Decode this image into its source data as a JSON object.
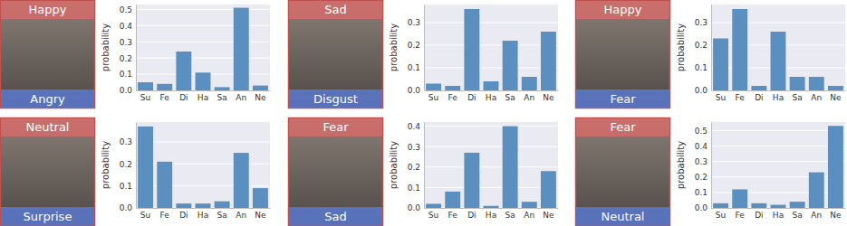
{
  "chart_data": [
    {
      "type": "bar",
      "categories": [
        "Su",
        "Fe",
        "Di",
        "Ha",
        "Sa",
        "An",
        "Ne"
      ],
      "values": [
        0.05,
        0.04,
        0.24,
        0.11,
        0.02,
        0.51,
        0.03
      ],
      "color": "#5b8fbf",
      "ylim": [
        0,
        0.53
      ],
      "yticks": [
        {
          "value": 0,
          "label": "0.0"
        },
        0.1,
        0.2,
        0.3,
        0.4,
        0.5
      ],
      "y_label": "probability",
      "grid": true
    },
    {
      "type": "bar",
      "categories": [
        "Su",
        "Fe",
        "Di",
        "Ha",
        "Sa",
        "An",
        "Ne"
      ],
      "values": [
        0.03,
        0.02,
        0.36,
        0.04,
        0.22,
        0.06,
        0.26
      ],
      "color": "#5b8fbf",
      "ylim": [
        0,
        0.38
      ],
      "yticks": [
        {
          "value": 0,
          "label": "0.0"
        },
        0.1,
        0.2,
        0.3
      ],
      "y_label": "probability",
      "grid": true
    },
    {
      "type": "bar",
      "categories": [
        "Su",
        "Fe",
        "Di",
        "Ha",
        "Sa",
        "An",
        "Ne"
      ],
      "values": [
        0.23,
        0.36,
        0.02,
        0.26,
        0.06,
        0.06,
        0.02
      ],
      "color": "#5b8fbf",
      "ylim": [
        0,
        0.38
      ],
      "yticks": [
        {
          "value": 0,
          "label": "0.0"
        },
        0.1,
        0.2,
        0.3
      ],
      "y_label": "probability",
      "grid": true
    },
    {
      "type": "bar",
      "categories": [
        "Su",
        "Fe",
        "Di",
        "Ha",
        "Sa",
        "An",
        "Ne"
      ],
      "values": [
        0.37,
        0.21,
        0.02,
        0.02,
        0.03,
        0.25,
        0.09
      ],
      "color": "#5b8fbf",
      "ylim": [
        0,
        0.39
      ],
      "yticks": [
        {
          "value": 0,
          "label": "0.0"
        },
        0.1,
        0.2,
        0.3
      ],
      "y_label": "probability",
      "grid": true
    },
    {
      "type": "bar",
      "categories": [
        "Su",
        "Fe",
        "Di",
        "Ha",
        "Sa",
        "An",
        "Ne"
      ],
      "values": [
        0.02,
        0.08,
        0.27,
        0.01,
        0.4,
        0.03,
        0.18
      ],
      "color": "#5b8fbf",
      "ylim": [
        0,
        0.42
      ],
      "yticks": [
        {
          "value": 0,
          "label": "0.0"
        },
        0.1,
        0.2,
        0.3,
        0.4
      ],
      "y_label": "probability",
      "grid": true
    },
    {
      "type": "bar",
      "categories": [
        "Su",
        "Fe",
        "Di",
        "Ha",
        "Sa",
        "An",
        "Ne"
      ],
      "values": [
        0.03,
        0.12,
        0.03,
        0.02,
        0.04,
        0.23,
        0.53
      ],
      "color": "#5b8fbf",
      "ylim": [
        0,
        0.555
      ],
      "yticks": [
        {
          "value": 0,
          "label": "0.0"
        },
        0.1,
        0.2,
        0.3,
        0.4,
        0.5
      ],
      "y_label": "probability",
      "grid": true
    }
  ],
  "panels": [
    {
      "top_label": "Happy",
      "bottom_label": "Angry"
    },
    {
      "top_label": "Sad",
      "bottom_label": "Disgust"
    },
    {
      "top_label": "Happy",
      "bottom_label": "Fear"
    },
    {
      "top_label": "Neutral",
      "bottom_label": "Surprise"
    },
    {
      "top_label": "Fear",
      "bottom_label": "Sad"
    },
    {
      "top_label": "Fear",
      "bottom_label": "Neutral"
    }
  ]
}
